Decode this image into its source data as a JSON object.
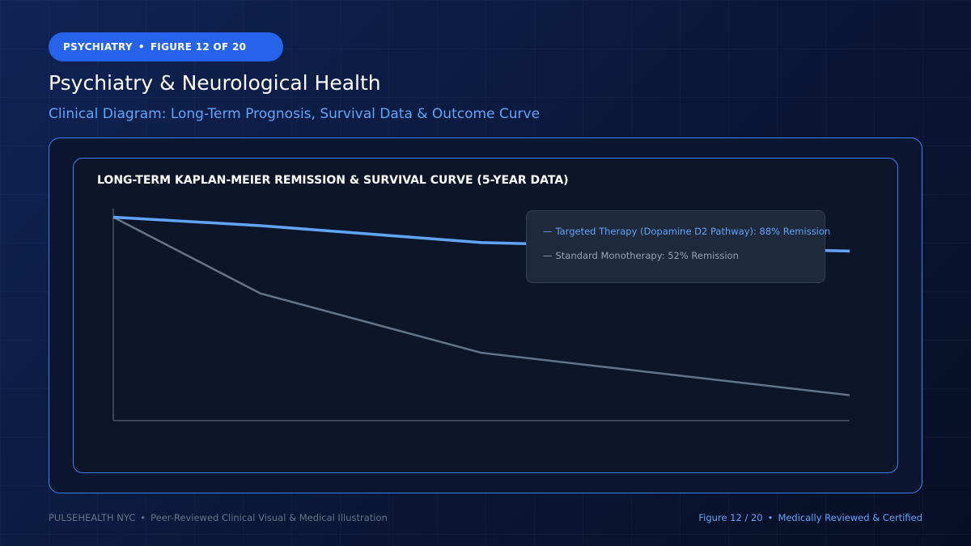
{
  "badge": {
    "category": "PSYCHIATRY",
    "figure": "FIGURE 12 OF 20"
  },
  "header": {
    "title": "Psychiatry & Neurological Health",
    "subtitle": "Clinical Diagram: Long-Term Prognosis, Survival Data & Outcome Curve"
  },
  "colors": {
    "accent": "#2563eb",
    "targeted_line": "#60a5fa",
    "standard_line": "#64748b",
    "axis": "#475569"
  },
  "chart_data": {
    "type": "line",
    "title": "LONG-TERM KAPLAN-MEIER REMISSION & SURVIVAL CURVE (5-YEAR DATA)",
    "xlabel": "",
    "ylabel": "",
    "x": [
      0,
      1,
      2.5,
      5
    ],
    "xlim": [
      0,
      5
    ],
    "ylim": [
      0,
      100
    ],
    "grid": false,
    "legend_position": "top-right",
    "series": [
      {
        "name": "Targeted Therapy (Dopamine D2 Pathway): 88% Remission",
        "values": [
          96,
          92,
          84,
          80
        ]
      },
      {
        "name": "Standard Monotherapy: 52% Remission",
        "values": [
          96,
          60,
          32,
          12
        ]
      }
    ]
  },
  "legend": {
    "targeted": "Targeted Therapy (Dopamine D2 Pathway): 88% Remission",
    "standard": "Standard Monotherapy: 52% Remission",
    "dash": "—"
  },
  "footer": {
    "brand": "PULSEHEALTH NYC",
    "tagline": "Peer-Reviewed Clinical Visual & Medical Illustration",
    "figure": "Figure 12 / 20",
    "certified": "Medically Reviewed & Certified",
    "separator": "•"
  }
}
